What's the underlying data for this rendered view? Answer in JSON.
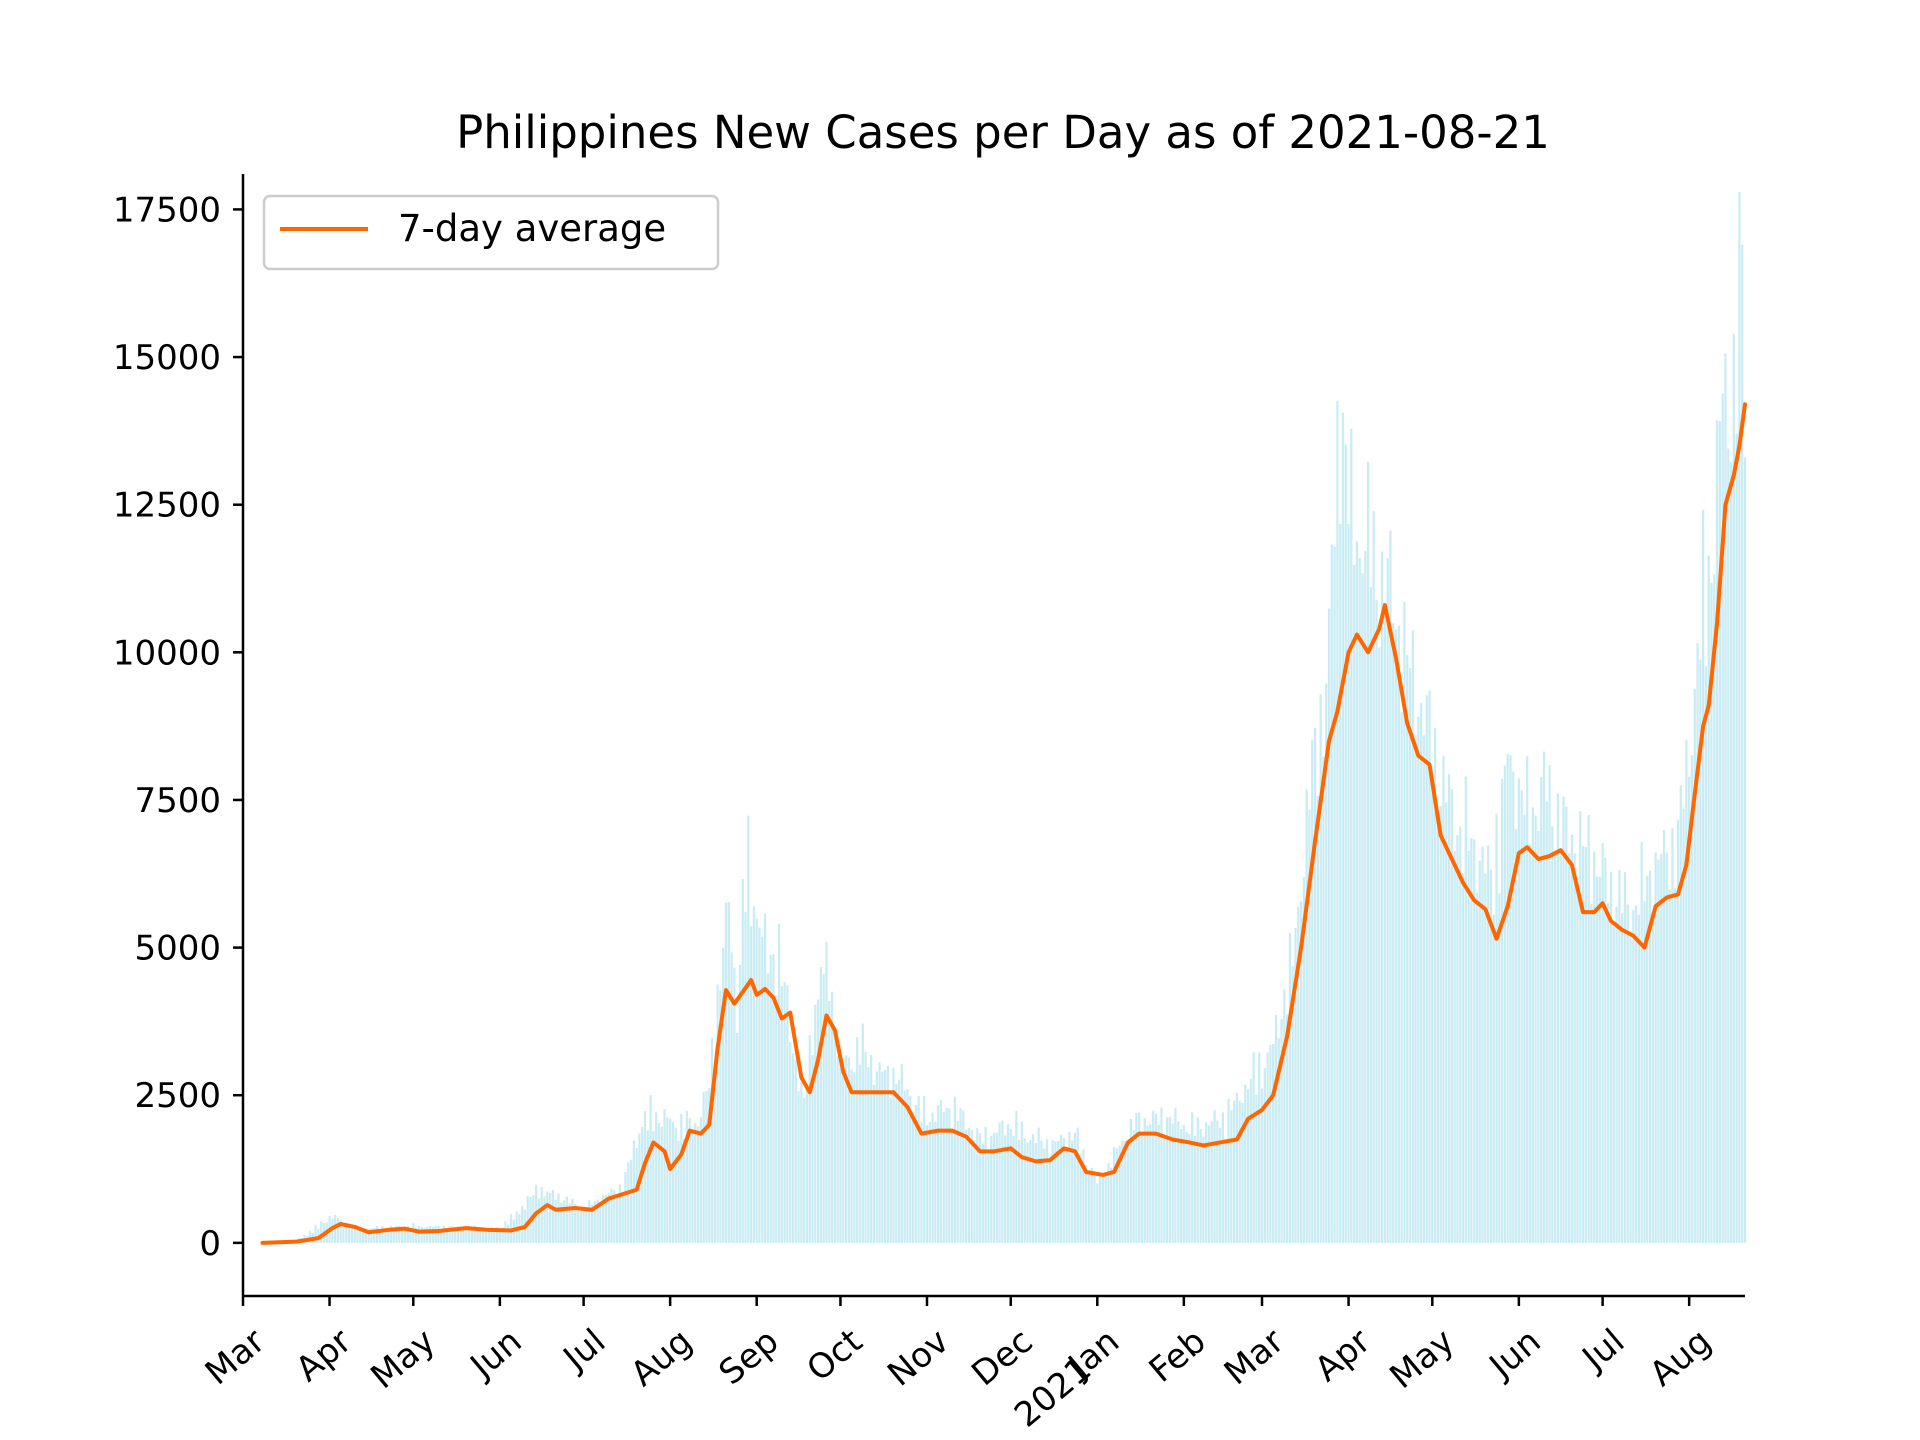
{
  "chart_data": {
    "type": "line",
    "title": "Philippines New Cases per Day as of 2021-08-21",
    "xlabel": "",
    "ylabel": "",
    "legend": {
      "position": "top-left",
      "entries": [
        "7-day average"
      ]
    },
    "grid": false,
    "x_range": [
      "2020-03-01",
      "2021-08-21"
    ],
    "ylim": [
      -900,
      18100
    ],
    "yticks": [
      0,
      2500,
      5000,
      7500,
      10000,
      12500,
      15000,
      17500
    ],
    "xticks": [
      {
        "date": "2020-03-01",
        "label": "Mar"
      },
      {
        "date": "2020-04-01",
        "label": "Apr"
      },
      {
        "date": "2020-05-01",
        "label": "May"
      },
      {
        "date": "2020-06-01",
        "label": "Jun"
      },
      {
        "date": "2020-07-01",
        "label": "Jul"
      },
      {
        "date": "2020-08-01",
        "label": "Aug"
      },
      {
        "date": "2020-09-01",
        "label": "Sep"
      },
      {
        "date": "2020-10-01",
        "label": "Oct"
      },
      {
        "date": "2020-11-01",
        "label": "Nov"
      },
      {
        "date": "2020-12-01",
        "label": "Dec"
      },
      {
        "date": "2021-01-01",
        "label": "Jan\n2021"
      },
      {
        "date": "2021-02-01",
        "label": "Feb"
      },
      {
        "date": "2021-03-01",
        "label": "Mar"
      },
      {
        "date": "2021-04-01",
        "label": "Apr"
      },
      {
        "date": "2021-05-01",
        "label": "May"
      },
      {
        "date": "2021-06-01",
        "label": "Jun"
      },
      {
        "date": "2021-07-01",
        "label": "Jul"
      },
      {
        "date": "2021-08-01",
        "label": "Aug"
      }
    ],
    "series": [
      {
        "name": "7-day average",
        "kind": "line",
        "color": "#ff6600",
        "points": [
          [
            "2020-03-08",
            0
          ],
          [
            "2020-03-20",
            20
          ],
          [
            "2020-03-28",
            80
          ],
          [
            "2020-04-02",
            250
          ],
          [
            "2020-04-05",
            320
          ],
          [
            "2020-04-10",
            270
          ],
          [
            "2020-04-15",
            180
          ],
          [
            "2020-04-22",
            220
          ],
          [
            "2020-04-28",
            240
          ],
          [
            "2020-05-03",
            190
          ],
          [
            "2020-05-10",
            200
          ],
          [
            "2020-05-20",
            250
          ],
          [
            "2020-05-28",
            220
          ],
          [
            "2020-06-05",
            210
          ],
          [
            "2020-06-10",
            270
          ],
          [
            "2020-06-14",
            500
          ],
          [
            "2020-06-18",
            640
          ],
          [
            "2020-06-21",
            560
          ],
          [
            "2020-06-28",
            590
          ],
          [
            "2020-07-04",
            560
          ],
          [
            "2020-07-10",
            750
          ],
          [
            "2020-07-16",
            840
          ],
          [
            "2020-07-20",
            900
          ],
          [
            "2020-07-23",
            1350
          ],
          [
            "2020-07-26",
            1700
          ],
          [
            "2020-07-30",
            1550
          ],
          [
            "2020-08-01",
            1250
          ],
          [
            "2020-08-05",
            1500
          ],
          [
            "2020-08-08",
            1900
          ],
          [
            "2020-08-12",
            1850
          ],
          [
            "2020-08-15",
            2000
          ],
          [
            "2020-08-18",
            3300
          ],
          [
            "2020-08-21",
            4280
          ],
          [
            "2020-08-24",
            4050
          ],
          [
            "2020-08-27",
            4250
          ],
          [
            "2020-08-30",
            4450
          ],
          [
            "2020-09-01",
            4200
          ],
          [
            "2020-09-04",
            4300
          ],
          [
            "2020-09-07",
            4150
          ],
          [
            "2020-09-10",
            3800
          ],
          [
            "2020-09-13",
            3900
          ],
          [
            "2020-09-17",
            2800
          ],
          [
            "2020-09-20",
            2550
          ],
          [
            "2020-09-23",
            3100
          ],
          [
            "2020-09-26",
            3850
          ],
          [
            "2020-09-29",
            3600
          ],
          [
            "2020-10-02",
            2900
          ],
          [
            "2020-10-05",
            2550
          ],
          [
            "2020-10-10",
            2550
          ],
          [
            "2020-10-15",
            2550
          ],
          [
            "2020-10-20",
            2550
          ],
          [
            "2020-10-25",
            2300
          ],
          [
            "2020-10-30",
            1850
          ],
          [
            "2020-11-05",
            1900
          ],
          [
            "2020-11-10",
            1900
          ],
          [
            "2020-11-15",
            1800
          ],
          [
            "2020-11-20",
            1550
          ],
          [
            "2020-11-25",
            1550
          ],
          [
            "2020-12-01",
            1600
          ],
          [
            "2020-12-05",
            1450
          ],
          [
            "2020-12-10",
            1380
          ],
          [
            "2020-12-15",
            1400
          ],
          [
            "2020-12-20",
            1600
          ],
          [
            "2020-12-24",
            1550
          ],
          [
            "2020-12-28",
            1200
          ],
          [
            "2021-01-03",
            1150
          ],
          [
            "2021-01-07",
            1200
          ],
          [
            "2021-01-12",
            1700
          ],
          [
            "2021-01-16",
            1850
          ],
          [
            "2021-01-22",
            1850
          ],
          [
            "2021-01-28",
            1750
          ],
          [
            "2021-02-03",
            1700
          ],
          [
            "2021-02-08",
            1650
          ],
          [
            "2021-02-14",
            1700
          ],
          [
            "2021-02-20",
            1750
          ],
          [
            "2021-02-24",
            2100
          ],
          [
            "2021-03-01",
            2250
          ],
          [
            "2021-03-05",
            2500
          ],
          [
            "2021-03-10",
            3500
          ],
          [
            "2021-03-15",
            5000
          ],
          [
            "2021-03-20",
            6800
          ],
          [
            "2021-03-25",
            8500
          ],
          [
            "2021-03-28",
            9000
          ],
          [
            "2021-04-01",
            10000
          ],
          [
            "2021-04-04",
            10300
          ],
          [
            "2021-04-08",
            10000
          ],
          [
            "2021-04-12",
            10400
          ],
          [
            "2021-04-14",
            10800
          ],
          [
            "2021-04-18",
            9900
          ],
          [
            "2021-04-22",
            8800
          ],
          [
            "2021-04-26",
            8250
          ],
          [
            "2021-04-30",
            8100
          ],
          [
            "2021-05-04",
            6900
          ],
          [
            "2021-05-08",
            6500
          ],
          [
            "2021-05-12",
            6100
          ],
          [
            "2021-05-16",
            5800
          ],
          [
            "2021-05-20",
            5650
          ],
          [
            "2021-05-24",
            5150
          ],
          [
            "2021-05-28",
            5700
          ],
          [
            "2021-06-01",
            6600
          ],
          [
            "2021-06-04",
            6700
          ],
          [
            "2021-06-08",
            6500
          ],
          [
            "2021-06-12",
            6550
          ],
          [
            "2021-06-16",
            6650
          ],
          [
            "2021-06-20",
            6400
          ],
          [
            "2021-06-24",
            5600
          ],
          [
            "2021-06-28",
            5600
          ],
          [
            "2021-07-01",
            5750
          ],
          [
            "2021-07-04",
            5450
          ],
          [
            "2021-07-08",
            5300
          ],
          [
            "2021-07-12",
            5200
          ],
          [
            "2021-07-16",
            5000
          ],
          [
            "2021-07-20",
            5700
          ],
          [
            "2021-07-24",
            5850
          ],
          [
            "2021-07-28",
            5900
          ],
          [
            "2021-07-31",
            6400
          ],
          [
            "2021-08-03",
            7600
          ],
          [
            "2021-08-06",
            8750
          ],
          [
            "2021-08-08",
            9100
          ],
          [
            "2021-08-11",
            10500
          ],
          [
            "2021-08-14",
            12500
          ],
          [
            "2021-08-17",
            13000
          ],
          [
            "2021-08-19",
            13500
          ],
          [
            "2021-08-21",
            14200
          ]
        ]
      },
      {
        "name": "",
        "kind": "daily-bars",
        "color": "#c9ecf4",
        "points": [
          [
            "2020-03-08",
            0
          ],
          [
            "2020-03-20",
            40
          ],
          [
            "2020-04-02",
            500
          ],
          [
            "2020-04-10",
            250
          ],
          [
            "2020-05-01",
            300
          ],
          [
            "2020-06-01",
            250
          ],
          [
            "2020-06-15",
            1000
          ],
          [
            "2020-07-01",
            600
          ],
          [
            "2020-07-15",
            1000
          ],
          [
            "2020-07-22",
            2300
          ],
          [
            "2020-08-01",
            2200
          ],
          [
            "2020-08-10",
            2000
          ],
          [
            "2020-08-15",
            2800
          ],
          [
            "2020-08-19",
            4900
          ],
          [
            "2020-08-22",
            5900
          ],
          [
            "2020-08-25",
            4000
          ],
          [
            "2020-08-28",
            6800
          ],
          [
            "2020-09-01",
            6100
          ],
          [
            "2020-09-05",
            4800
          ],
          [
            "2020-09-09",
            5200
          ],
          [
            "2020-09-13",
            3600
          ],
          [
            "2020-09-18",
            2300
          ],
          [
            "2020-09-23",
            4900
          ],
          [
            "2020-09-27",
            4700
          ],
          [
            "2020-10-01",
            3000
          ],
          [
            "2020-10-08",
            3500
          ],
          [
            "2020-10-14",
            3000
          ],
          [
            "2020-10-21",
            2900
          ],
          [
            "2020-11-01",
            2200
          ],
          [
            "2020-11-10",
            2400
          ],
          [
            "2020-11-20",
            1800
          ],
          [
            "2020-12-01",
            2100
          ],
          [
            "2020-12-15",
            1700
          ],
          [
            "2020-12-24",
            1900
          ],
          [
            "2021-01-01",
            1000
          ],
          [
            "2021-01-10",
            1800
          ],
          [
            "2021-01-15",
            2100
          ],
          [
            "2021-01-25",
            2200
          ],
          [
            "2021-02-05",
            2000
          ],
          [
            "2021-02-15",
            2200
          ],
          [
            "2021-02-25",
            2900
          ],
          [
            "2021-03-05",
            3500
          ],
          [
            "2021-03-12",
            5000
          ],
          [
            "2021-03-18",
            7900
          ],
          [
            "2021-03-24",
            9800
          ],
          [
            "2021-03-29",
            15300
          ],
          [
            "2021-04-02",
            12500
          ],
          [
            "2021-04-07",
            12600
          ],
          [
            "2021-04-11",
            11400
          ],
          [
            "2021-04-16",
            11300
          ],
          [
            "2021-04-22",
            10000
          ],
          [
            "2021-04-28",
            9200
          ],
          [
            "2021-05-04",
            8000
          ],
          [
            "2021-05-10",
            7300
          ],
          [
            "2021-05-16",
            6900
          ],
          [
            "2021-05-22",
            6300
          ],
          [
            "2021-05-28",
            8700
          ],
          [
            "2021-06-04",
            7400
          ],
          [
            "2021-06-10",
            8000
          ],
          [
            "2021-06-16",
            7200
          ],
          [
            "2021-06-22",
            6900
          ],
          [
            "2021-06-28",
            6800
          ],
          [
            "2021-07-04",
            6100
          ],
          [
            "2021-07-10",
            5800
          ],
          [
            "2021-07-16",
            6200
          ],
          [
            "2021-07-22",
            6700
          ],
          [
            "2021-07-28",
            7000
          ],
          [
            "2021-08-01",
            8700
          ],
          [
            "2021-08-05",
            11000
          ],
          [
            "2021-08-09",
            12100
          ],
          [
            "2021-08-13",
            14700
          ],
          [
            "2021-08-17",
            14900
          ],
          [
            "2021-08-20",
            17200
          ],
          [
            "2021-08-21",
            14200
          ]
        ]
      }
    ]
  }
}
